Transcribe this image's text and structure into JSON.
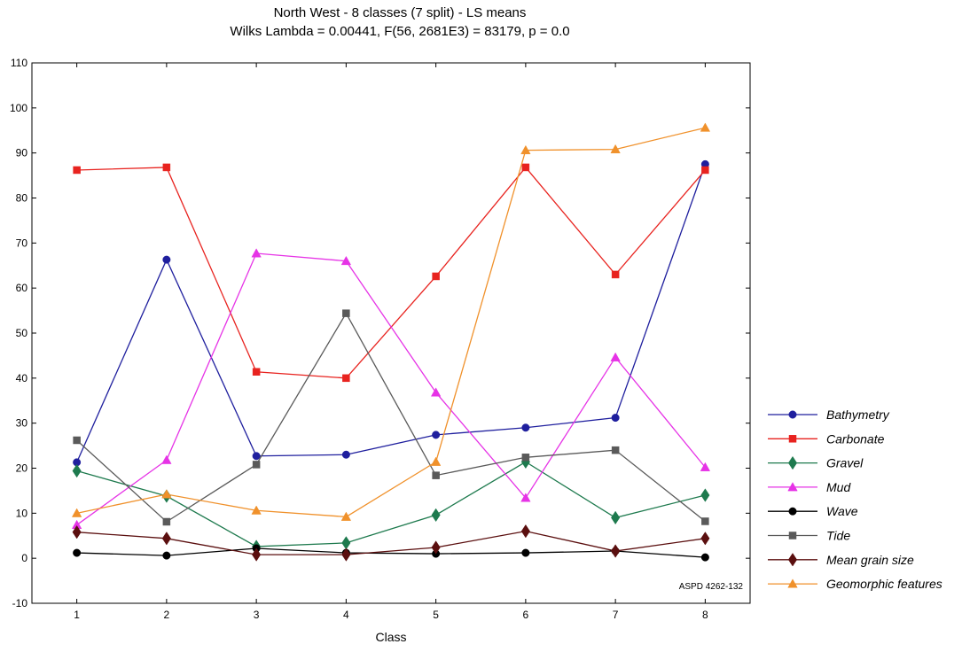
{
  "chart_data": {
    "type": "line",
    "title": "North West - 8 classes (7 split) - LS means",
    "subtitle": "Wilks Lambda = 0.00441, F(56, 2681E3) = 83179, p = 0.0",
    "xlabel": "Class",
    "ylabel": "",
    "x": [
      1,
      2,
      3,
      4,
      5,
      6,
      7,
      8
    ],
    "xlim": [
      0.5,
      8.5
    ],
    "ylim": [
      -10,
      110
    ],
    "yticks": [
      -10,
      0,
      10,
      20,
      30,
      40,
      50,
      60,
      70,
      80,
      90,
      100,
      110
    ],
    "grid": false,
    "legend_position": "right",
    "annotation": "ASPD 4262-132",
    "series": [
      {
        "name": "Bathymetry",
        "color": "#1f1f9e",
        "marker": "circle",
        "values": [
          21.3,
          66.3,
          22.7,
          23.0,
          27.4,
          29.0,
          31.2,
          87.5
        ]
      },
      {
        "name": "Carbonate",
        "color": "#e8231f",
        "marker": "square",
        "values": [
          86.2,
          86.8,
          41.4,
          40.0,
          62.6,
          86.8,
          63.0,
          86.2
        ]
      },
      {
        "name": "Gravel",
        "color": "#1e7a4e",
        "marker": "diamond",
        "values": [
          19.4,
          13.8,
          2.6,
          3.4,
          9.6,
          21.4,
          9.0,
          14.0
        ]
      },
      {
        "name": "Mud",
        "color": "#e633e6",
        "marker": "triangle",
        "values": [
          7.4,
          21.8,
          67.7,
          66.0,
          36.8,
          13.4,
          44.6,
          20.2
        ]
      },
      {
        "name": "Wave",
        "color": "#000000",
        "marker": "circle",
        "values": [
          1.2,
          0.6,
          2.2,
          1.2,
          1.0,
          1.2,
          1.6,
          0.2
        ]
      },
      {
        "name": "Tide",
        "color": "#5a5a5a",
        "marker": "square",
        "values": [
          26.2,
          8.1,
          20.8,
          54.4,
          18.4,
          22.4,
          24.0,
          8.2
        ]
      },
      {
        "name": "Mean grain size",
        "color": "#5b0f0f",
        "marker": "diamond",
        "values": [
          5.8,
          4.4,
          0.8,
          0.8,
          2.4,
          6.0,
          1.6,
          4.4
        ]
      },
      {
        "name": "Geomorphic features",
        "color": "#f0912b",
        "marker": "triangle",
        "values": [
          10.0,
          14.2,
          10.6,
          9.2,
          21.4,
          90.6,
          90.8,
          95.6
        ]
      }
    ]
  }
}
